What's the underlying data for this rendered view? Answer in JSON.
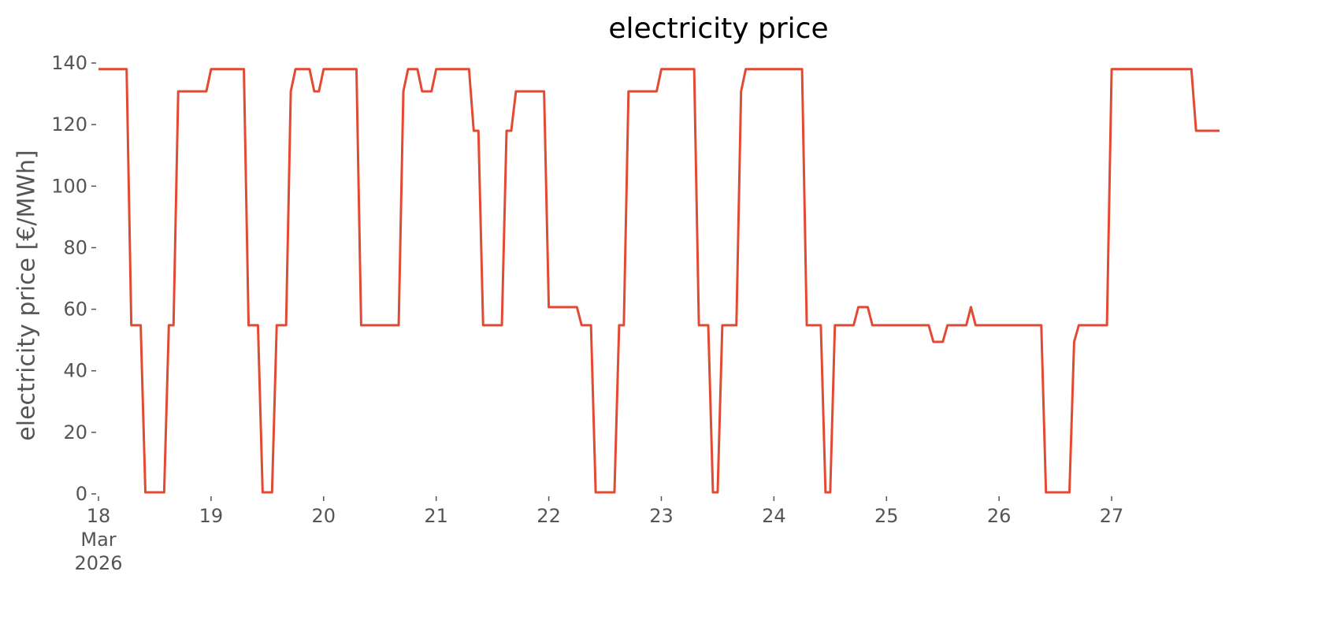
{
  "chart_data": {
    "type": "line",
    "title": "electricity price",
    "ylabel": "electricity price [€/MWh]",
    "x": [
      "2026-03-18T00:00",
      "2026-03-18T06:00",
      "2026-03-18T07:00",
      "2026-03-18T09:00",
      "2026-03-18T10:00",
      "2026-03-18T14:00",
      "2026-03-18T15:00",
      "2026-03-18T16:00",
      "2026-03-18T17:00",
      "2026-03-18T23:00",
      "2026-03-19T00:00",
      "2026-03-19T07:00",
      "2026-03-19T08:00",
      "2026-03-19T10:00",
      "2026-03-19T11:00",
      "2026-03-19T13:00",
      "2026-03-19T14:00",
      "2026-03-19T16:00",
      "2026-03-19T17:00",
      "2026-03-19T18:00",
      "2026-03-19T21:00",
      "2026-03-19T22:00",
      "2026-03-19T23:00",
      "2026-03-20T00:00",
      "2026-03-20T07:00",
      "2026-03-20T08:00",
      "2026-03-20T16:00",
      "2026-03-20T17:00",
      "2026-03-20T18:00",
      "2026-03-20T20:00",
      "2026-03-20T21:00",
      "2026-03-20T23:00",
      "2026-03-21T00:00",
      "2026-03-21T07:00",
      "2026-03-21T08:00",
      "2026-03-21T09:00",
      "2026-03-21T10:00",
      "2026-03-21T14:00",
      "2026-03-21T15:00",
      "2026-03-21T16:00",
      "2026-03-21T17:00",
      "2026-03-21T23:00",
      "2026-03-22T00:00",
      "2026-03-22T06:00",
      "2026-03-22T07:00",
      "2026-03-22T09:00",
      "2026-03-22T10:00",
      "2026-03-22T14:00",
      "2026-03-22T15:00",
      "2026-03-22T16:00",
      "2026-03-22T17:00",
      "2026-03-22T23:00",
      "2026-03-23T00:00",
      "2026-03-23T07:00",
      "2026-03-23T08:00",
      "2026-03-23T10:00",
      "2026-03-23T11:00",
      "2026-03-23T12:00",
      "2026-03-23T13:00",
      "2026-03-23T16:00",
      "2026-03-23T17:00",
      "2026-03-23T18:00",
      "2026-03-24T06:00",
      "2026-03-24T07:00",
      "2026-03-24T10:00",
      "2026-03-24T11:00",
      "2026-03-24T12:00",
      "2026-03-24T13:00",
      "2026-03-24T17:00",
      "2026-03-24T18:00",
      "2026-03-24T20:00",
      "2026-03-24T21:00",
      "2026-03-25T09:00",
      "2026-03-25T10:00",
      "2026-03-25T12:00",
      "2026-03-25T13:00",
      "2026-03-25T17:00",
      "2026-03-25T18:00",
      "2026-03-25T19:00",
      "2026-03-26T09:00",
      "2026-03-26T10:00",
      "2026-03-26T15:00",
      "2026-03-26T16:00",
      "2026-03-26T17:00",
      "2026-03-26T23:00",
      "2026-03-27T00:00",
      "2026-03-27T17:00",
      "2026-03-27T18:00",
      "2026-03-27T23:00"
    ],
    "series": [
      {
        "name": "electricity price",
        "color": "#e24a33",
        "values": [
          138,
          138,
          54.8,
          54.8,
          0.5,
          0.5,
          54.8,
          54.8,
          130.8,
          130.8,
          138,
          138,
          54.8,
          54.8,
          0.5,
          0.5,
          54.8,
          54.8,
          130.8,
          138,
          138,
          130.8,
          130.8,
          138,
          138,
          54.8,
          54.8,
          130.8,
          138,
          138,
          130.8,
          130.8,
          138,
          138,
          118,
          118,
          54.8,
          54.8,
          118,
          118,
          130.8,
          130.8,
          60.7,
          60.7,
          54.8,
          54.8,
          0.5,
          0.5,
          54.8,
          54.8,
          130.8,
          130.8,
          138,
          138,
          54.8,
          54.8,
          0.5,
          0.5,
          54.8,
          54.8,
          130.8,
          138,
          138,
          54.8,
          54.8,
          0.5,
          0.5,
          54.8,
          54.8,
          60.7,
          60.7,
          54.8,
          54.8,
          49.4,
          49.4,
          54.8,
          54.8,
          60.7,
          54.8,
          54.8,
          0.5,
          0.5,
          49.4,
          54.8,
          54.8,
          138,
          138,
          118,
          118
        ]
      }
    ],
    "xlim": [
      "2026-03-18T00:00",
      "2026-03-27T23:00"
    ],
    "xticks": [
      {
        "value": "2026-03-18",
        "label": "18\nMar\n2026"
      },
      {
        "value": "2026-03-19",
        "label": "19"
      },
      {
        "value": "2026-03-20",
        "label": "20"
      },
      {
        "value": "2026-03-21",
        "label": "21"
      },
      {
        "value": "2026-03-22",
        "label": "22"
      },
      {
        "value": "2026-03-23",
        "label": "23"
      },
      {
        "value": "2026-03-24",
        "label": "24"
      },
      {
        "value": "2026-03-25",
        "label": "25"
      },
      {
        "value": "2026-03-26",
        "label": "26"
      },
      {
        "value": "2026-03-27",
        "label": "27"
      }
    ],
    "ylim": [
      0,
      140
    ],
    "yticks": [
      0,
      20,
      40,
      60,
      80,
      100,
      120,
      140
    ],
    "grid": false
  }
}
